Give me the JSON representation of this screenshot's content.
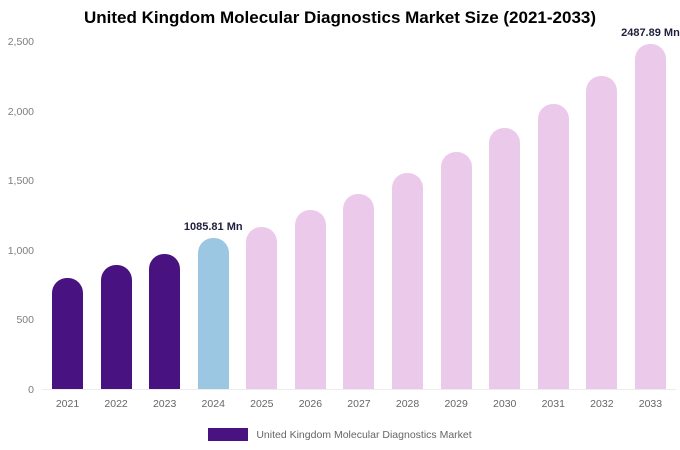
{
  "title": "United Kingdom Molecular Diagnostics Market Size (2021-2033)",
  "legend": {
    "label": "United Kingdom Molecular Diagnostics Market"
  },
  "colors": {
    "historical": "#481380",
    "current": "#9BC7E3",
    "forecast": "#EBC9EB",
    "annotation": "#1f1f3d"
  },
  "chart_data": {
    "type": "bar",
    "title": "United Kingdom Molecular Diagnostics Market Size (2021-2033)",
    "unit": "Mn",
    "categories": [
      "2021",
      "2022",
      "2023",
      "2024",
      "2025",
      "2026",
      "2027",
      "2028",
      "2029",
      "2030",
      "2031",
      "2032",
      "2033"
    ],
    "values": [
      800,
      890,
      975,
      1085.81,
      1170,
      1290,
      1405,
      1555,
      1705,
      1880,
      2055,
      2255,
      2487.89
    ],
    "bar_roles": [
      "historical",
      "historical",
      "historical",
      "current",
      "forecast",
      "forecast",
      "forecast",
      "forecast",
      "forecast",
      "forecast",
      "forecast",
      "forecast",
      "forecast"
    ],
    "annotations": [
      {
        "category": "2024",
        "text": "1085.81 Mn"
      },
      {
        "category": "2033",
        "text": "2487.89 Mn"
      }
    ],
    "xlabel": "",
    "ylabel": "",
    "ylim": [
      0,
      2500
    ],
    "yticks": [
      {
        "value": 0,
        "label": "0"
      },
      {
        "value": 500,
        "label": "500"
      },
      {
        "value": 1000,
        "label": "1,000"
      },
      {
        "value": 1500,
        "label": "1,500"
      },
      {
        "value": 2000,
        "label": "2,000"
      },
      {
        "value": 2500,
        "label": "2,500"
      }
    ],
    "grid": false,
    "legend_position": "bottom"
  }
}
